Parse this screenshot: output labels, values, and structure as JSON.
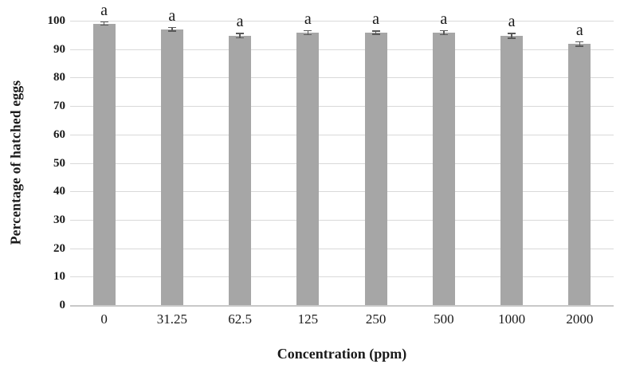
{
  "chart_data": {
    "type": "bar",
    "title": "",
    "xlabel": "Concentration (ppm)",
    "ylabel": "Percentage of hatched eggs",
    "categories": [
      "0",
      "31.25",
      "62.5",
      "125",
      "250",
      "500",
      "1000",
      "2000"
    ],
    "values": [
      99,
      97,
      94.8,
      95.8,
      95.8,
      95.8,
      94.7,
      91.8
    ],
    "errors": [
      0.8,
      0.9,
      1.0,
      0.9,
      0.8,
      0.9,
      1.0,
      1.0
    ],
    "bar_labels": [
      "a",
      "a",
      "a",
      "a",
      "a",
      "a",
      "a",
      "a"
    ],
    "ylim": [
      0,
      100
    ],
    "yticks": [
      0,
      10,
      20,
      30,
      40,
      50,
      60,
      70,
      80,
      90,
      100
    ],
    "grid": true,
    "legend": "none",
    "colors": {
      "bar": "#a6a6a6",
      "error_bar": "#595959",
      "gridline": "#d9d9d9",
      "axis_line": "#c8c8c8",
      "text": "#1a1a1a",
      "background": "#ffffff"
    }
  }
}
